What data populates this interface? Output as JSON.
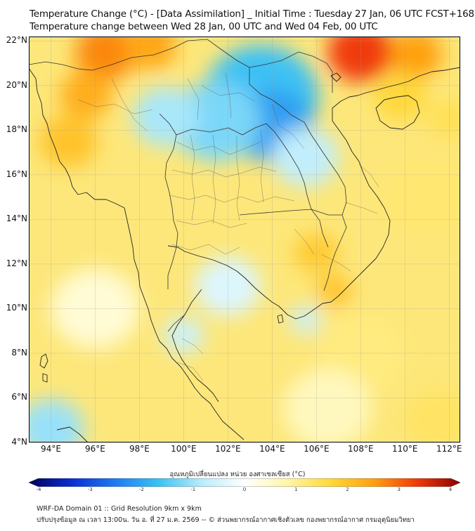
{
  "title_line1": "Temperature Change (°C) - [Data Assimilation] _ Initial Time : Tuesday 27 Jan, 06 UTC FCST+168",
  "title_line2": "Temperature change between Wed 28 Jan, 00 UTC and Wed 04 Feb, 00 UTC",
  "lat_labels": [
    "22°N",
    "20°N",
    "18°N",
    "16°N",
    "14°N",
    "12°N",
    "10°N",
    "8°N",
    "6°N",
    "4°N"
  ],
  "lon_labels": [
    "94°E",
    "96°E",
    "98°E",
    "100°E",
    "102°E",
    "104°E",
    "106°E",
    "108°E",
    "110°E",
    "112°E"
  ],
  "colorbar": {
    "label": "อุณหภูมิเปลี่ยนแปลง หน่วย องศาเซลเซียส (°C)",
    "ticks": [
      "-4",
      "-3",
      "-2",
      "-1",
      "0",
      "1",
      "2",
      "3",
      "4"
    ],
    "min": -4,
    "max": 4,
    "colors": [
      "#00005a",
      "#0b2fd2",
      "#1f7bf0",
      "#3cc1f4",
      "#b8ecfb",
      "#ffffff",
      "#fff6a8",
      "#ffd83a",
      "#ffa010",
      "#f03a0a",
      "#8a0000"
    ]
  },
  "footer_line1": "WRF-DA Domain 01 :: Grid Resolution 9km x 9km",
  "footer_line2": "ปรับปรุงข้อมูล ณ เวลา 13:00น. วัน อ. ที่ 27 ม.ค. 2569 -- © ส่วนพยากรณ์อากาศเชิงตัวเลข กองพยากรณ์อากาศ กรมอุตุนิยมวิทยา",
  "map": {
    "lon_range": [
      93,
      112.5
    ],
    "lat_range": [
      4,
      22.2
    ],
    "background_color": "#fde77a",
    "field_blobs": [
      {
        "lon": 96.5,
        "lat": 21.5,
        "r": 1.4,
        "value": 2.6
      },
      {
        "lon": 98.5,
        "lat": 21.8,
        "r": 1.2,
        "value": 2.3
      },
      {
        "lon": 95.6,
        "lat": 19.6,
        "r": 1.2,
        "value": 2.2
      },
      {
        "lon": 94.8,
        "lat": 17.5,
        "r": 1.3,
        "value": 1.9
      },
      {
        "lon": 108.0,
        "lat": 21.5,
        "r": 1.5,
        "value": 3.2
      },
      {
        "lon": 110.5,
        "lat": 21.4,
        "r": 1.2,
        "value": 2.4
      },
      {
        "lon": 112.0,
        "lat": 18.5,
        "r": 1.0,
        "value": 1.4
      },
      {
        "lon": 109.8,
        "lat": 19.5,
        "r": 1.2,
        "value": 1.6
      },
      {
        "lon": 103.5,
        "lat": 19.5,
        "r": 2.6,
        "value": -1.6
      },
      {
        "lon": 104.0,
        "lat": 18.2,
        "r": 1.8,
        "value": -2.0
      },
      {
        "lon": 101.5,
        "lat": 18.4,
        "r": 2.0,
        "value": -1.2
      },
      {
        "lon": 99.2,
        "lat": 18.6,
        "r": 1.5,
        "value": -0.9
      },
      {
        "lon": 105.5,
        "lat": 16.8,
        "r": 1.5,
        "value": -0.7
      },
      {
        "lon": 106.0,
        "lat": 12.5,
        "r": 1.0,
        "value": 1.8
      },
      {
        "lon": 106.8,
        "lat": 10.8,
        "r": 0.8,
        "value": 1.9
      },
      {
        "lon": 105.5,
        "lat": 9.5,
        "r": 0.7,
        "value": -0.6
      },
      {
        "lon": 102.0,
        "lat": 11.0,
        "r": 1.5,
        "value": -0.4
      },
      {
        "lon": 100.0,
        "lat": 8.8,
        "r": 0.9,
        "value": -0.6
      },
      {
        "lon": 94.0,
        "lat": 4.6,
        "r": 1.5,
        "value": -1.0
      },
      {
        "lon": 96.0,
        "lat": 10.0,
        "r": 2.0,
        "value": 0.4
      },
      {
        "lon": 108.0,
        "lat": 8.0,
        "r": 2.0,
        "value": 1.1
      },
      {
        "lon": 106.5,
        "lat": 5.5,
        "r": 2.0,
        "value": 0.6
      },
      {
        "lon": 111.0,
        "lat": 15.0,
        "r": 2.0,
        "value": 1.2
      },
      {
        "lon": 111.5,
        "lat": 5.0,
        "r": 1.5,
        "value": 1.3
      }
    ]
  }
}
